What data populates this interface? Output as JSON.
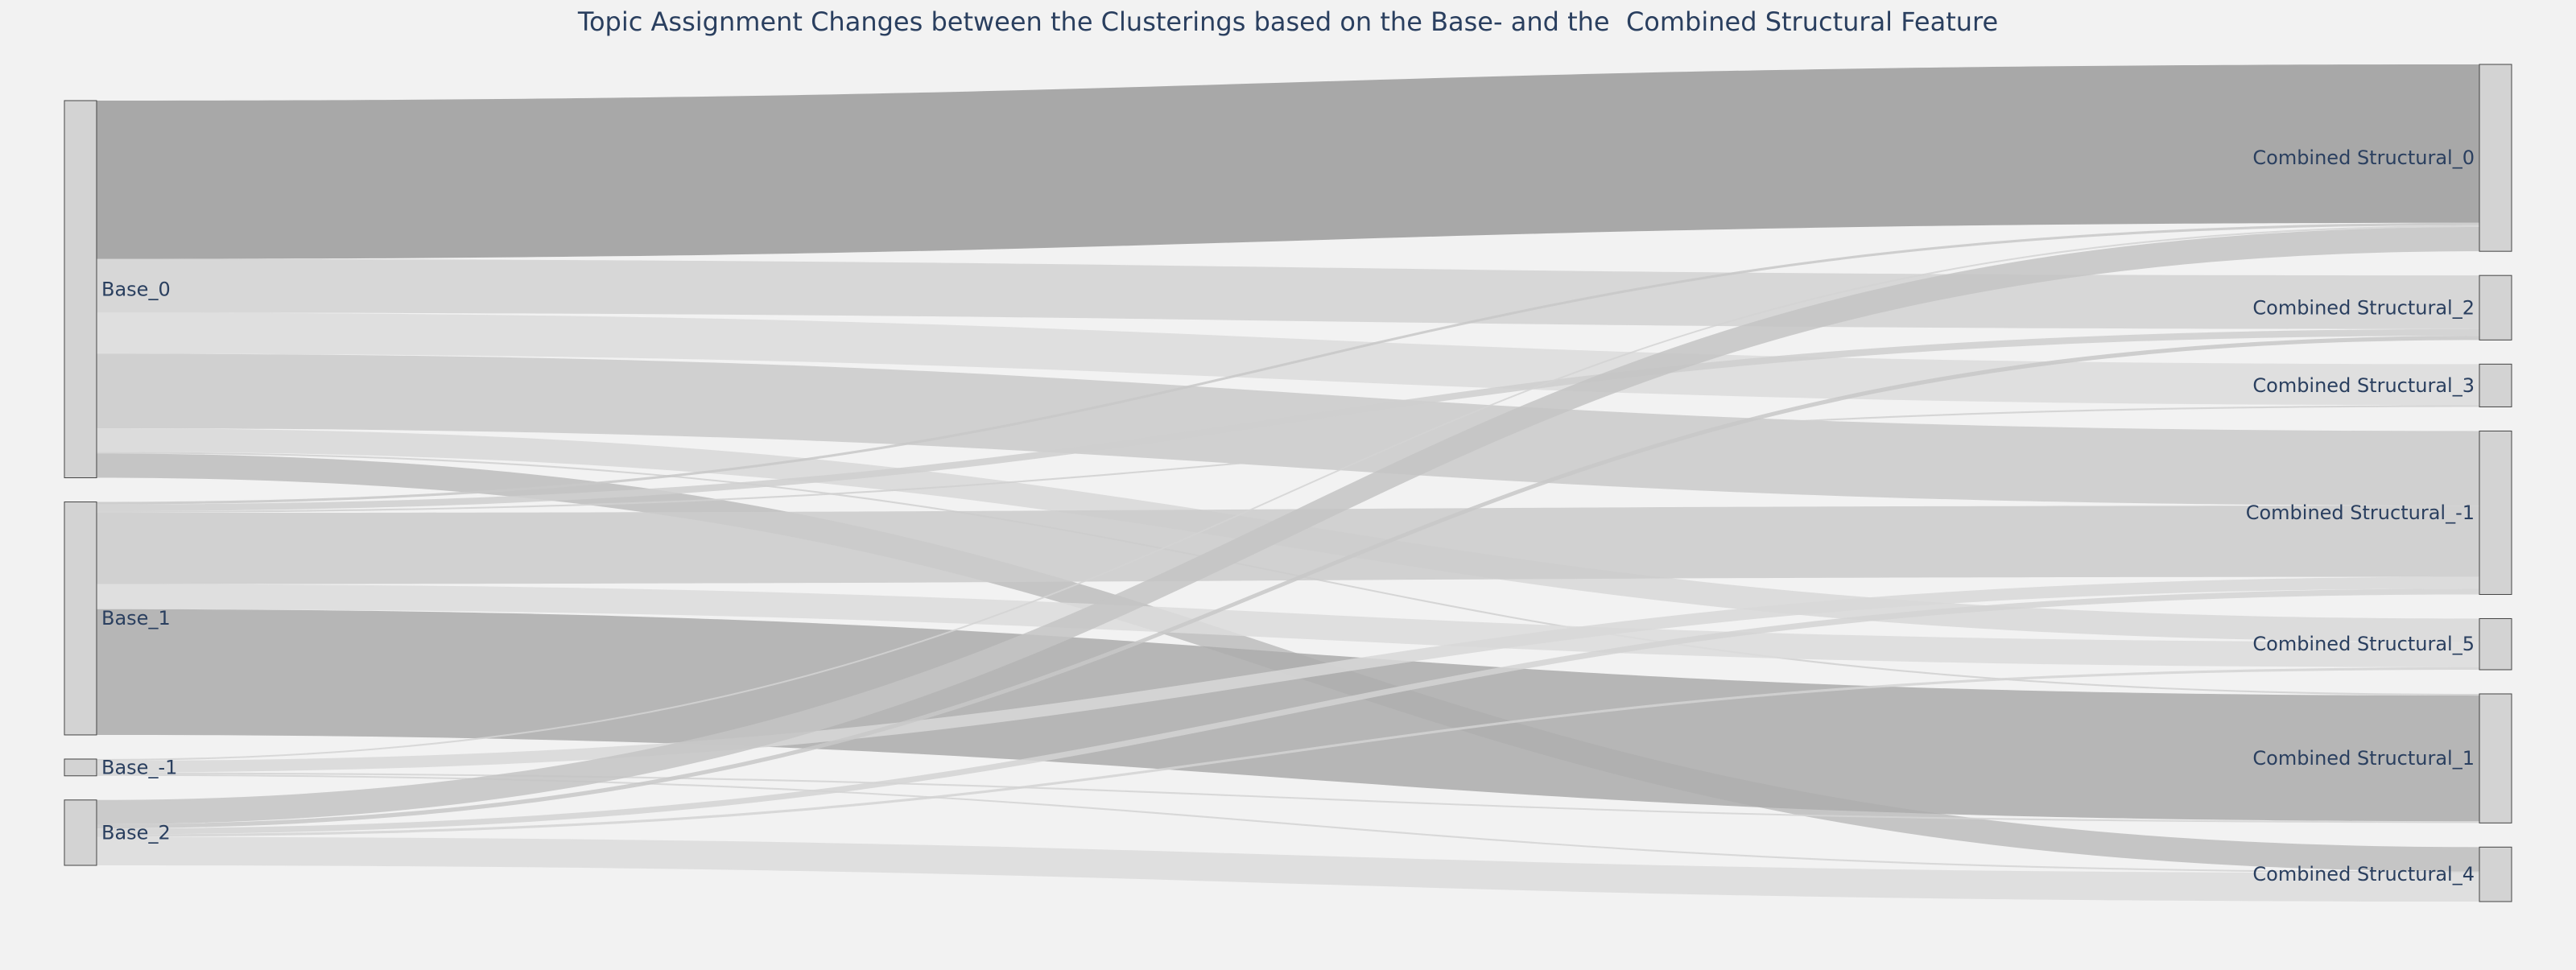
{
  "colors": {
    "background": "#f2f2f2",
    "node_fill": "#d3d3d3",
    "node_stroke": "#444444",
    "text": "#2a3f5f"
  },
  "chart_data": {
    "type": "sankey",
    "title": "Topic Assignment Changes between the Clusterings based on the Base- and the  Combined Structural Feature",
    "source_nodes": [
      "Base_0",
      "Base_1",
      "Base_-1",
      "Base_2"
    ],
    "target_nodes": [
      "Combined Structural_0",
      "Combined Structural_2",
      "Combined Structural_3",
      "Combined Structural_-1",
      "Combined Structural_5",
      "Combined Structural_1",
      "Combined Structural_4"
    ],
    "links": [
      {
        "source": "Base_0",
        "target": "Combined Structural_0",
        "value": 189,
        "color": "#9b9b9b"
      },
      {
        "source": "Base_0",
        "target": "Combined Structural_2",
        "value": 64,
        "color": "#d2d2d2"
      },
      {
        "source": "Base_0",
        "target": "Combined Structural_3",
        "value": 49,
        "color": "#dcdcdc"
      },
      {
        "source": "Base_0",
        "target": "Combined Structural_-1",
        "value": 89,
        "color": "#cacaca"
      },
      {
        "source": "Base_0",
        "target": "Combined Structural_5",
        "value": 28,
        "color": "#d8d8d8"
      },
      {
        "source": "Base_0",
        "target": "Combined Structural_1",
        "value": 2,
        "color": "#d0d0d0"
      },
      {
        "source": "Base_0",
        "target": "Combined Structural_4",
        "value": 29,
        "color": "#bdbdbd"
      },
      {
        "source": "Base_1",
        "target": "Combined Structural_0",
        "value": 3,
        "color": "#c8c8c8"
      },
      {
        "source": "Base_1",
        "target": "Combined Structural_2",
        "value": 8,
        "color": "#cfcfcf"
      },
      {
        "source": "Base_1",
        "target": "Combined Structural_3",
        "value": 2,
        "color": "#d0d0d0"
      },
      {
        "source": "Base_1",
        "target": "Combined Structural_-1",
        "value": 85,
        "color": "#cbcbcb"
      },
      {
        "source": "Base_1",
        "target": "Combined Structural_5",
        "value": 30,
        "color": "#dcdcdc"
      },
      {
        "source": "Base_1",
        "target": "Combined Structural_1",
        "value": 150,
        "color": "#ababab"
      },
      {
        "source": "Base_-1",
        "target": "Combined Structural_0",
        "value": 2,
        "color": "#d4d4d4"
      },
      {
        "source": "Base_-1",
        "target": "Combined Structural_-1",
        "value": 14,
        "color": "#d8d8d8"
      },
      {
        "source": "Base_-1",
        "target": "Combined Structural_1",
        "value": 2,
        "color": "#d4d4d4"
      },
      {
        "source": "Base_-1",
        "target": "Combined Structural_4",
        "value": 2,
        "color": "#d4d4d4"
      },
      {
        "source": "Base_2",
        "target": "Combined Structural_0",
        "value": 29,
        "color": "#c4c4c4"
      },
      {
        "source": "Base_2",
        "target": "Combined Structural_2",
        "value": 5,
        "color": "#c8c8c8"
      },
      {
        "source": "Base_2",
        "target": "Combined Structural_-1",
        "value": 7,
        "color": "#d4d4d4"
      },
      {
        "source": "Base_2",
        "target": "Combined Structural_5",
        "value": 3,
        "color": "#d4d4d4"
      },
      {
        "source": "Base_2",
        "target": "Combined Structural_4",
        "value": 34,
        "color": "#dcdcdc"
      }
    ]
  }
}
